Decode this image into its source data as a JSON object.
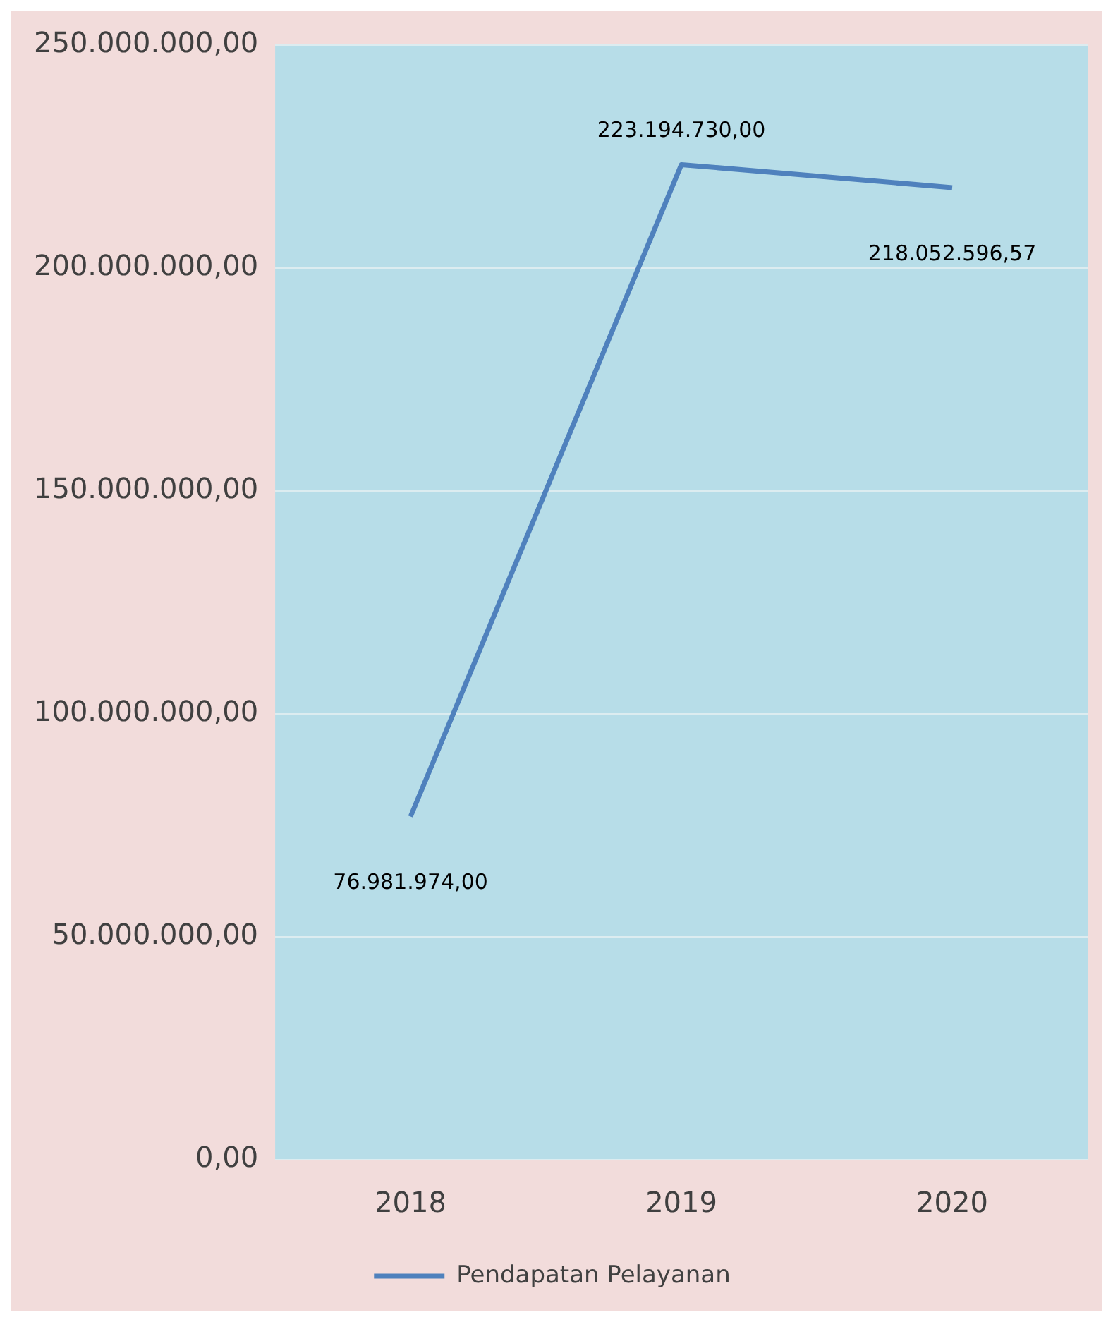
{
  "chart_data": {
    "type": "line",
    "categories": [
      "2018",
      "2019",
      "2020"
    ],
    "series": [
      {
        "name": "Pendapatan Pelayanan",
        "color": "#4f81bd",
        "values": [
          76981974,
          223194730,
          218052596.57
        ],
        "value_labels": [
          "76.981.974,00",
          "223.194.730,00",
          "218.052.596,57"
        ]
      }
    ],
    "ylim": [
      0,
      250000000
    ],
    "yticks": [
      {
        "value": 0,
        "label": "0,00"
      },
      {
        "value": 50000000,
        "label": "50.000.000,00"
      },
      {
        "value": 100000000,
        "label": "100.000.000,00"
      },
      {
        "value": 150000000,
        "label": "150.000.000,00"
      },
      {
        "value": 200000000,
        "label": "200.000.000,00"
      },
      {
        "value": 250000000,
        "label": "250.000.000,00"
      }
    ],
    "grid": "y",
    "legend": "bottom",
    "marker": "none",
    "line_style": "solid"
  }
}
